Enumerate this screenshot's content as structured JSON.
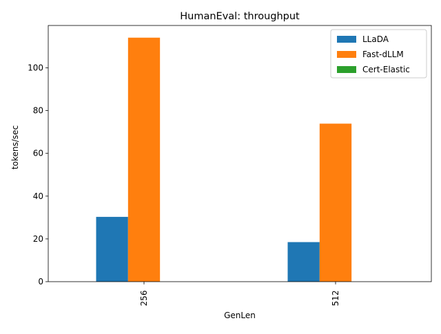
{
  "chart_data": {
    "type": "bar",
    "title": "HumanEval: throughput",
    "xlabel": "GenLen",
    "ylabel": "tokens/sec",
    "categories": [
      "256",
      "512"
    ],
    "series": [
      {
        "name": "LLaDA",
        "values": [
          30.3,
          18.5
        ],
        "color": "#1f77b4"
      },
      {
        "name": "Fast-dLLM",
        "values": [
          114.1,
          73.9
        ],
        "color": "#ff7f0e"
      },
      {
        "name": "Cert-Elastic",
        "values": [
          0,
          0
        ],
        "color": "#2ca02c"
      }
    ],
    "ylim": [
      0,
      119.8
    ],
    "yticks": [
      0,
      20,
      40,
      60,
      80,
      100
    ],
    "grid": false,
    "legend_position": "top-right"
  }
}
